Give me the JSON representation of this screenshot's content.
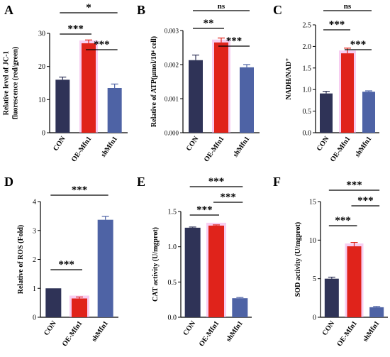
{
  "colors": {
    "CON": "#2f3357",
    "OE-Mfn1": "#e0231b",
    "shMfn1": "#4e63a5",
    "glow": "#f0a6e6"
  },
  "chart_data": [
    {
      "panel": "A",
      "type": "bar",
      "categories": [
        "CON",
        "OE-Mfn1",
        "shMfn1"
      ],
      "values": [
        16,
        27,
        13.5
      ],
      "errors": [
        0.8,
        1.0,
        1.2
      ],
      "ylabel_lines": [
        "Relative level of JC-1",
        "fluorescence (red/green)"
      ],
      "ylim": [
        0,
        30
      ],
      "yticks": [
        "0",
        "10",
        "20",
        "30"
      ],
      "tick_values": [
        0,
        10,
        20,
        30
      ],
      "sig": [
        {
          "from": 0,
          "to": 2,
          "label": "*"
        },
        {
          "from": 0,
          "to": 1,
          "label": "***"
        },
        {
          "from": 1,
          "to": 2,
          "label": "***"
        }
      ]
    },
    {
      "panel": "B",
      "type": "bar",
      "categories": [
        "CON",
        "OE-Mfn1",
        "shMfn1"
      ],
      "values": [
        0.00213,
        0.00265,
        0.00192
      ],
      "errors": [
        0.00015,
        0.00013,
        8e-05
      ],
      "ylabel_lines": [
        "Relative of ATP(μmol/10⁴ cell)"
      ],
      "ylim": [
        0,
        0.003
      ],
      "yticks": [
        "0.000",
        "0.001",
        "0.002",
        "0.003"
      ],
      "tick_values": [
        0,
        0.001,
        0.002,
        0.003
      ],
      "sig": [
        {
          "from": 0,
          "to": 2,
          "label": "ns"
        },
        {
          "from": 0,
          "to": 1,
          "label": "**"
        },
        {
          "from": 1,
          "to": 2,
          "label": "***"
        }
      ]
    },
    {
      "panel": "C",
      "type": "bar",
      "categories": [
        "CON",
        "OE-Mfn1",
        "shMfn1"
      ],
      "values": [
        0.91,
        1.84,
        0.95
      ],
      "errors": [
        0.05,
        0.12,
        0.02
      ],
      "ylabel_lines": [
        "NADH/NAD⁺"
      ],
      "ylim": [
        0,
        2.5
      ],
      "yticks": [
        "0.0",
        "0.5",
        "1.0",
        "1.5",
        "2.0",
        "2.5"
      ],
      "tick_values": [
        0,
        0.5,
        1,
        1.5,
        2,
        2.5
      ],
      "sig": [
        {
          "from": 0,
          "to": 2,
          "label": "ns"
        },
        {
          "from": 0,
          "to": 1,
          "label": "***"
        },
        {
          "from": 1,
          "to": 2,
          "label": "***"
        }
      ]
    },
    {
      "panel": "D",
      "type": "bar",
      "categories": [
        "CON",
        "OE-Mfn1",
        "shMfn1"
      ],
      "values": [
        1.0,
        0.65,
        3.37
      ],
      "errors": [
        0.0,
        0.05,
        0.12
      ],
      "ylabel_lines": [
        "Relative of ROS (Fold)"
      ],
      "ylim": [
        0,
        4
      ],
      "yticks": [
        "0",
        "1",
        "2",
        "3",
        "4"
      ],
      "tick_values": [
        0,
        1,
        2,
        3,
        4
      ],
      "sig": [
        {
          "from": 0,
          "to": 1,
          "label": "***"
        },
        {
          "from": 0,
          "to": 2,
          "label": "***"
        }
      ]
    },
    {
      "panel": "E",
      "type": "bar",
      "categories": [
        "CON",
        "OE-Mfn1",
        "shMfn1"
      ],
      "values": [
        1.27,
        1.3,
        0.27
      ],
      "errors": [
        0.01,
        0.01,
        0.01
      ],
      "ylabel_lines": [
        "CAT activity (U/mgprot)"
      ],
      "ylim": [
        0,
        1.5
      ],
      "yticks": [
        "0.0",
        "0.5",
        "1.0",
        "1.5"
      ],
      "tick_values": [
        0,
        0.5,
        1,
        1.5
      ],
      "sig": [
        {
          "from": 0,
          "to": 1,
          "label": "***"
        },
        {
          "from": 1,
          "to": 2,
          "label": "***"
        },
        {
          "from": 0,
          "to": 2,
          "label": "***"
        }
      ]
    },
    {
      "panel": "F",
      "type": "bar",
      "categories": [
        "CON",
        "OE-Mfn1",
        "shMfn1"
      ],
      "values": [
        5.0,
        9.2,
        1.3
      ],
      "errors": [
        0.2,
        0.5,
        0.1
      ],
      "ylabel_lines": [
        "SOD activity (U/mgprot)"
      ],
      "ylim": [
        0,
        15
      ],
      "yticks": [
        "0",
        "5",
        "10",
        "15"
      ],
      "tick_values": [
        0,
        5,
        10,
        15
      ],
      "sig": [
        {
          "from": 0,
          "to": 1,
          "label": "***"
        },
        {
          "from": 1,
          "to": 2,
          "label": "***"
        },
        {
          "from": 0,
          "to": 2,
          "label": "***"
        }
      ]
    }
  ]
}
